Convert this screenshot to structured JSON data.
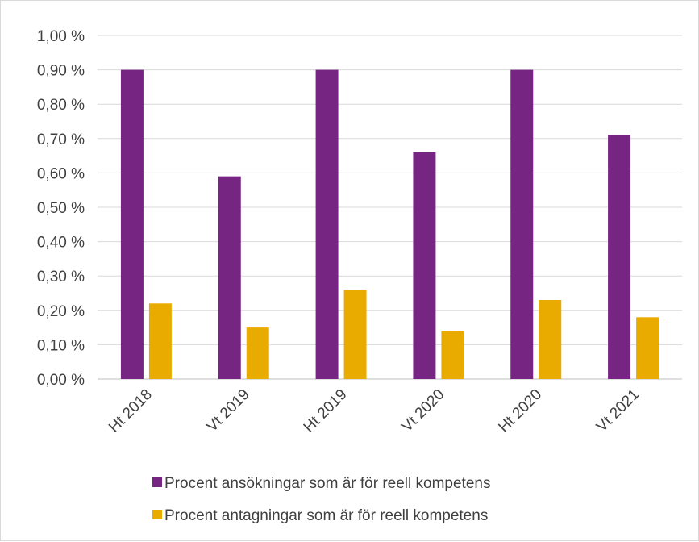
{
  "chart_data": {
    "type": "bar",
    "categories": [
      "Ht 2018",
      "Vt 2019",
      "Ht 2019",
      "Vt 2020",
      "Ht 2020",
      "Vt 2021"
    ],
    "series": [
      {
        "name": "Procent ansökningar som är för reell kompetens",
        "color": "#772583",
        "values": [
          0.9,
          0.59,
          0.9,
          0.66,
          0.9,
          0.71
        ]
      },
      {
        "name": "Procent antagningar som är för reell kompetens",
        "color": "#EAAB00",
        "values": [
          0.22,
          0.15,
          0.26,
          0.14,
          0.23,
          0.18
        ]
      }
    ],
    "y_unit": "%",
    "ylim": [
      0,
      1.0
    ],
    "y_ticks": [
      "0,00 %",
      "0,10 %",
      "0,20 %",
      "0,30 %",
      "0,40 %",
      "0,50 %",
      "0,60 %",
      "0,70 %",
      "0,80 %",
      "0,90 %",
      "1,00 %"
    ],
    "grid": true,
    "legend_position": "bottom",
    "xlabel_rotation": "-45deg"
  }
}
